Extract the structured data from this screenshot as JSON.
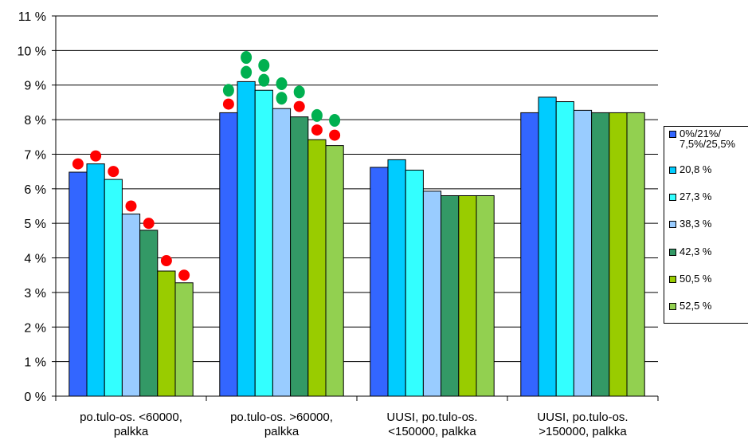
{
  "chart_data": {
    "type": "bar",
    "categories": [
      "po.tulo-os. <60000,\npalkka",
      "po.tulo-os. >60000,\npalkka",
      "UUSI, po.tulo-os.\n<150000, palkka",
      "UUSI, po.tulo-os.\n>150000, palkka"
    ],
    "series": [
      {
        "name": "0%/21%/\n7,5%/25,5%",
        "color": "#3366ff",
        "values": [
          6.48,
          8.2,
          6.62,
          8.2
        ]
      },
      {
        "name": "20,8 %",
        "color": "#00ccff",
        "values": [
          6.72,
          9.1,
          6.84,
          8.65
        ]
      },
      {
        "name": "27,3 %",
        "color": "#33ffff",
        "values": [
          6.27,
          8.85,
          6.54,
          8.52
        ]
      },
      {
        "name": "38,3 %",
        "color": "#99ccff",
        "values": [
          5.27,
          8.32,
          5.93,
          8.27
        ]
      },
      {
        "name": "42,3 %",
        "color": "#339966",
        "values": [
          4.8,
          8.08,
          5.8,
          8.2
        ]
      },
      {
        "name": "50,5 %",
        "color": "#99cc00",
        "values": [
          3.62,
          7.42,
          5.8,
          8.2
        ]
      },
      {
        "name": "52,5 %",
        "color": "#92d050",
        "values": [
          3.28,
          7.25,
          5.8,
          8.2
        ]
      }
    ],
    "ylim": [
      0,
      11
    ],
    "yticks": [
      "0 %",
      "1 %",
      "2 %",
      "3 %",
      "4 %",
      "5 %",
      "6 %",
      "7 %",
      "8 %",
      "9 %",
      "10 %",
      "11 %"
    ],
    "grid": true,
    "legend_position": "right",
    "markers": {
      "red": {
        "color": "#ff0000",
        "points": [
          {
            "category": 0,
            "series": 0,
            "value": 6.72
          },
          {
            "category": 0,
            "series": 1,
            "value": 6.95
          },
          {
            "category": 0,
            "series": 2,
            "value": 6.5
          },
          {
            "category": 0,
            "series": 3,
            "value": 5.5
          },
          {
            "category": 0,
            "series": 4,
            "value": 5.0
          },
          {
            "category": 0,
            "series": 5,
            "value": 3.92
          },
          {
            "category": 0,
            "series": 6,
            "value": 3.5
          },
          {
            "category": 1,
            "series": 0,
            "value": 8.45
          },
          {
            "category": 1,
            "series": 4,
            "value": 8.38
          },
          {
            "category": 1,
            "series": 5,
            "value": 7.7
          },
          {
            "category": 1,
            "series": 6,
            "value": 7.55
          }
        ]
      },
      "green": {
        "color": "#00b050",
        "points": [
          {
            "category": 1,
            "series": 0,
            "value": 8.85
          },
          {
            "category": 1,
            "series": 1,
            "value": 9.8
          },
          {
            "category": 1,
            "series": 1,
            "value": 9.37
          },
          {
            "category": 1,
            "series": 2,
            "value": 9.57
          },
          {
            "category": 1,
            "series": 2,
            "value": 9.14
          },
          {
            "category": 1,
            "series": 3,
            "value": 9.04
          },
          {
            "category": 1,
            "series": 3,
            "value": 8.62
          },
          {
            "category": 1,
            "series": 4,
            "value": 8.8
          },
          {
            "category": 1,
            "series": 5,
            "value": 8.12
          },
          {
            "category": 1,
            "series": 6,
            "value": 7.98
          }
        ]
      }
    }
  }
}
